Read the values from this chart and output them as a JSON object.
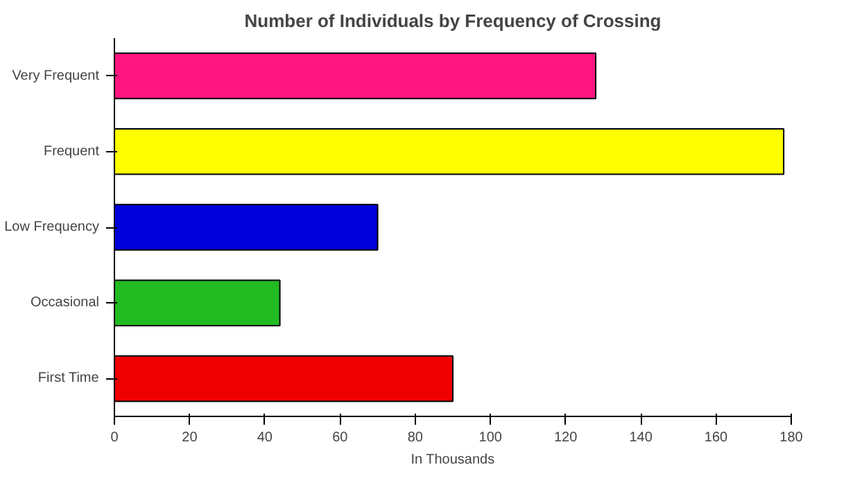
{
  "chart_data": {
    "type": "bar",
    "orientation": "horizontal",
    "title": "Number of Individuals by Frequency of Crossing",
    "xlabel": "In Thousands",
    "categories": [
      "Very Frequent",
      "Frequent",
      "Low Frequency",
      "Occasional",
      "First Time"
    ],
    "values": [
      128,
      178,
      70,
      44,
      90
    ],
    "colors": [
      "#ff1480",
      "#ffff00",
      "#0000dd",
      "#22bb22",
      "#ee0000"
    ],
    "xlim": [
      0,
      180
    ],
    "xticks": [
      0,
      20,
      40,
      60,
      80,
      100,
      120,
      140,
      160,
      180
    ],
    "grid": false
  }
}
